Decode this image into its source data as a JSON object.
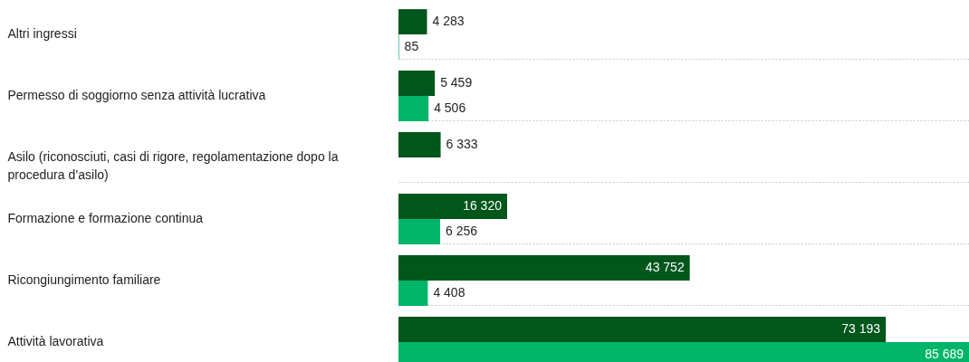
{
  "chart_data": {
    "type": "bar",
    "orientation": "horizontal",
    "categories": [
      "Altri ingressi",
      "Permesso di soggiorno senza attività lucrativa",
      "Asilo (riconosciuti, casi di rigore, regolamentazione dopo la procedura d’asilo)",
      "Formazione e formazione continua",
      "Ricongiungimento familiare",
      "Attività lavorativa"
    ],
    "series": [
      {
        "color": "#00561b",
        "values": [
          4283,
          5459,
          6333,
          16320,
          43752,
          73193
        ],
        "value_labels": [
          "4 283",
          "5 459",
          "6 333",
          "16 320",
          "43 752",
          "73 193"
        ]
      },
      {
        "color": "#00b569",
        "values": [
          85,
          4506,
          null,
          6256,
          4408,
          85689
        ],
        "value_labels": [
          "85",
          "4 506",
          null,
          "6 256",
          "4 408",
          "85 689"
        ]
      }
    ],
    "grid": true
  }
}
